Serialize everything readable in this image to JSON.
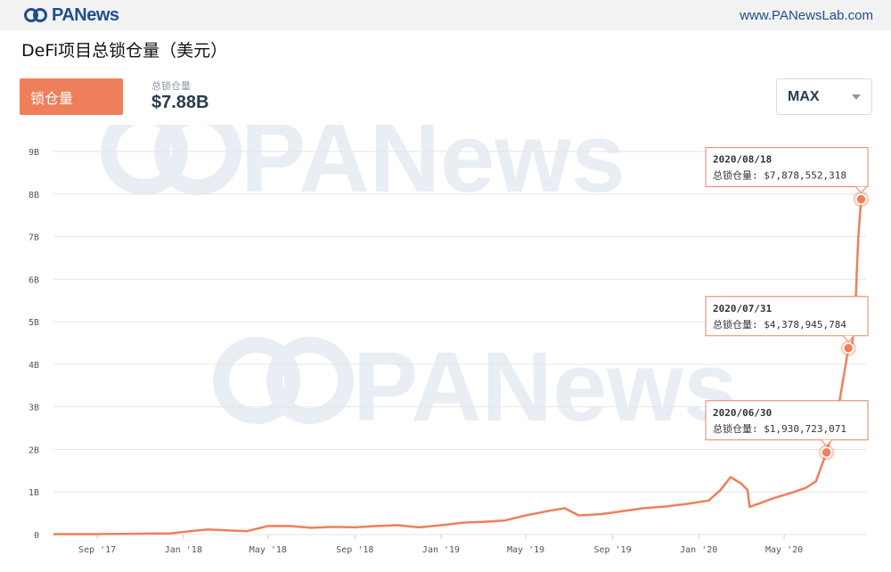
{
  "header": {
    "brand": "PANews",
    "site_url": "www.PANewsLab.com"
  },
  "colors": {
    "accent": "#ef7f5a",
    "brand": "#1f4e8c",
    "grid": "#e6e6e6",
    "watermark": "#e9eef4"
  },
  "title": "DeFi项目总锁仓量（美元）",
  "metric_tab": {
    "label": "锁仓量"
  },
  "stat": {
    "label": "总锁仓量",
    "value": "$7.88B"
  },
  "range_select": {
    "value": "MAX",
    "icon": "caret-down-icon"
  },
  "watermark": {
    "text": "PANews"
  },
  "chart_data": {
    "type": "line",
    "x_ticks": [
      "Sep '17",
      "Jan '18",
      "May '18",
      "Sep '18",
      "Jan '19",
      "May '19",
      "Sep '19",
      "Jan '20",
      "May '20"
    ],
    "y_ticks": [
      "0",
      "1B",
      "2B",
      "3B",
      "4B",
      "5B",
      "6B",
      "7B",
      "8B",
      "9B"
    ],
    "ylim": [
      0,
      9
    ],
    "xlim": [
      "2017-07-01",
      "2020-08-25"
    ],
    "y_unit": "B (USD)",
    "grid": true,
    "series": [
      {
        "points": [
          [
            "2017-07-01",
            0.01
          ],
          [
            "2017-09-01",
            0.01
          ],
          [
            "2017-11-01",
            0.02
          ],
          [
            "2017-12-15",
            0.03
          ],
          [
            "2018-01-10",
            0.08
          ],
          [
            "2018-02-05",
            0.12
          ],
          [
            "2018-03-01",
            0.1
          ],
          [
            "2018-04-01",
            0.08
          ],
          [
            "2018-05-01",
            0.2
          ],
          [
            "2018-06-01",
            0.2
          ],
          [
            "2018-07-01",
            0.16
          ],
          [
            "2018-08-01",
            0.18
          ],
          [
            "2018-09-01",
            0.17
          ],
          [
            "2018-10-01",
            0.2
          ],
          [
            "2018-11-01",
            0.22
          ],
          [
            "2018-12-01",
            0.17
          ],
          [
            "2019-01-01",
            0.22
          ],
          [
            "2019-02-01",
            0.28
          ],
          [
            "2019-03-01",
            0.3
          ],
          [
            "2019-04-01",
            0.33
          ],
          [
            "2019-05-01",
            0.45
          ],
          [
            "2019-06-01",
            0.55
          ],
          [
            "2019-06-25",
            0.62
          ],
          [
            "2019-07-15",
            0.45
          ],
          [
            "2019-08-15",
            0.48
          ],
          [
            "2019-09-15",
            0.55
          ],
          [
            "2019-10-15",
            0.62
          ],
          [
            "2019-11-15",
            0.66
          ],
          [
            "2019-12-15",
            0.72
          ],
          [
            "2020-01-15",
            0.8
          ],
          [
            "2020-02-01",
            1.05
          ],
          [
            "2020-02-15",
            1.35
          ],
          [
            "2020-03-01",
            1.2
          ],
          [
            "2020-03-10",
            1.05
          ],
          [
            "2020-03-13",
            0.65
          ],
          [
            "2020-03-25",
            0.72
          ],
          [
            "2020-04-15",
            0.85
          ],
          [
            "2020-05-15",
            1.0
          ],
          [
            "2020-06-01",
            1.1
          ],
          [
            "2020-06-15",
            1.25
          ],
          [
            "2020-06-30",
            1.930723071
          ],
          [
            "2020-07-15",
            2.8
          ],
          [
            "2020-07-31",
            4.378945784
          ],
          [
            "2020-08-05",
            4.4
          ],
          [
            "2020-08-10",
            5.4
          ],
          [
            "2020-08-14",
            7.0
          ],
          [
            "2020-08-18",
            7.878552318
          ]
        ]
      }
    ],
    "annotations": [
      {
        "date": "2020-08-18",
        "label": "总锁仓量:",
        "value": "$7,878,552,318",
        "y": 7.878552318
      },
      {
        "date": "2020-07-31",
        "label": "总锁仓量:",
        "value": "$4,378,945,784",
        "y": 4.378945784
      },
      {
        "date": "2020-06-30",
        "label": "总锁仓量:",
        "value": "$1,930,723,071",
        "y": 1.930723071
      }
    ]
  }
}
